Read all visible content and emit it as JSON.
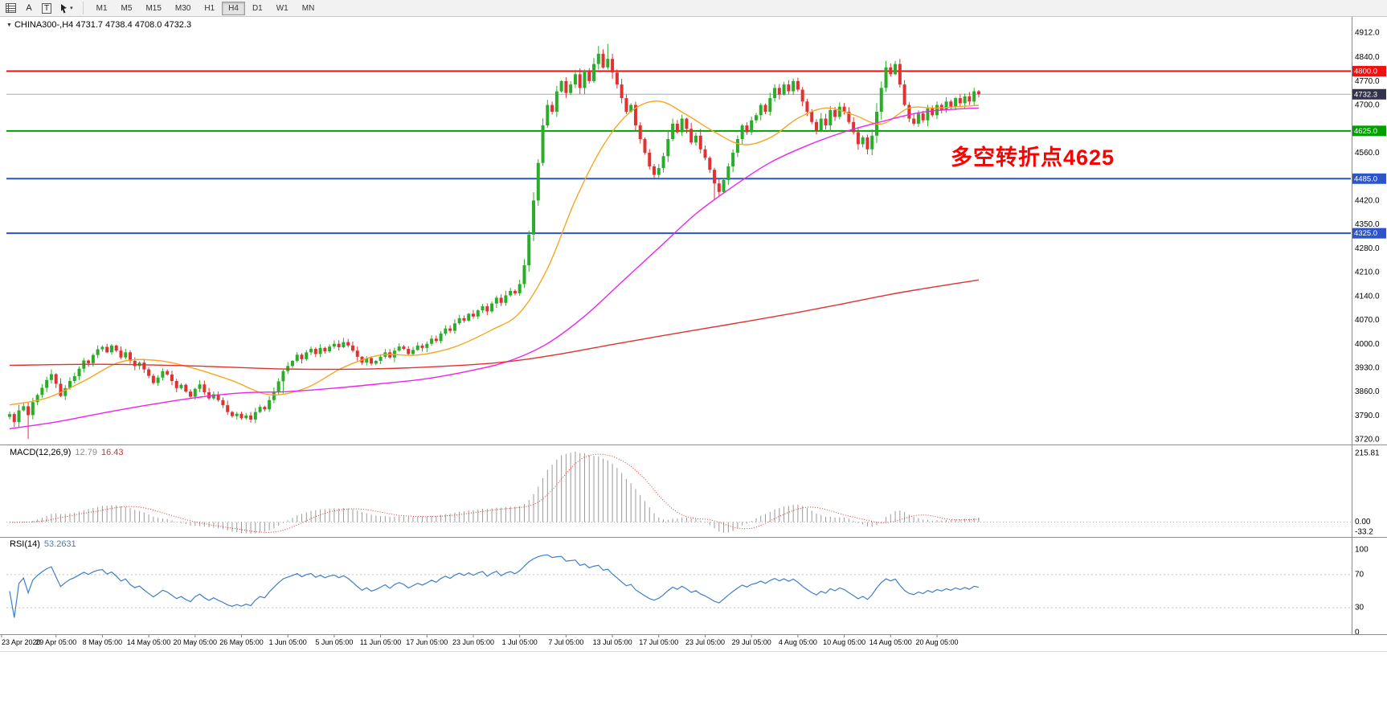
{
  "toolbar": {
    "tools": [
      {
        "name": "chart-list-icon"
      },
      {
        "name": "arrow-tool-button",
        "label": "A"
      },
      {
        "name": "text-tool-button",
        "label": "T"
      },
      {
        "name": "shapes-tool-button"
      }
    ],
    "timeframes": [
      "M1",
      "M5",
      "M15",
      "M30",
      "H1",
      "H4",
      "D1",
      "W1",
      "MN"
    ],
    "active_timeframe": "H4"
  },
  "chart": {
    "title": "CHINA300-,H4 4731.7 4738.4 4708.0 4732.3",
    "symbol": "CHINA300-",
    "period": "H4",
    "ohlc": {
      "open": "4731.7",
      "high": "4738.4",
      "low": "4708.0",
      "close": "4732.3"
    },
    "annotation": {
      "text": "多空转折点4625",
      "color": "#FF0000"
    },
    "levels": [
      {
        "price": 4800.0,
        "label": "4800.0",
        "color": "#EE1111",
        "width": 2,
        "kind": "resistance"
      },
      {
        "price": 4732.3,
        "label": "4732.3",
        "color": "#33334D",
        "line_color": "#a8a8a8",
        "width": 1,
        "kind": "current-price"
      },
      {
        "price": 4625.0,
        "label": "4625.0",
        "color": "#00A000",
        "width": 2,
        "kind": "support"
      },
      {
        "price": 4485.0,
        "label": "4485.0",
        "color": "#2D55C8",
        "width": 2,
        "kind": "support"
      },
      {
        "price": 4325.0,
        "label": "4325.0",
        "color": "#2D55C8",
        "width": 2,
        "kind": "support"
      }
    ]
  },
  "indicators": {
    "macd": {
      "title": "MACD(12,26,9)",
      "value_main": "12.79",
      "value_signal": "16.43",
      "params": {
        "fast": 12,
        "slow": 26,
        "signal": 9
      },
      "axis_labels": [
        "215.81",
        "0.00",
        "-33.2"
      ]
    },
    "rsi": {
      "title": "RSI(14)",
      "value": "53.2631",
      "period": 14,
      "levels": [
        70,
        30
      ],
      "axis_labels": [
        "100",
        "70",
        "30",
        "0"
      ]
    }
  },
  "colors": {
    "candle_up": "#2BAD2B",
    "candle_down": "#E03232",
    "ma_fast": "#F5A623",
    "ma_mid": "#EE22EE",
    "ma_slow": "#E03232",
    "macd_hist": "#9A9A9A",
    "macd_signal": "#E03232",
    "rsi_line": "#3E7EC8",
    "axis_text": "#000000",
    "grid_border": "#8c8c8c"
  },
  "chart_data": {
    "type": "candlestick",
    "symbol": "CHINA300-",
    "timeframe": "H4",
    "bars_per_label": 10,
    "x_labels": [
      "23 Apr 2020",
      "29 Apr 05:00",
      "8 May 05:00",
      "14 May 05:00",
      "20 May 05:00",
      "26 May 05:00",
      "1 Jun 05:00",
      "5 Jun 05:00",
      "11 Jun 05:00",
      "17 Jun 05:00",
      "23 Jun 05:00",
      "1 Jul 05:00",
      "7 Jul 05:00",
      "13 Jul 05:00",
      "17 Jul 05:00",
      "23 Jul 05:00",
      "29 Jul 05:00",
      "4 Aug 05:00",
      "10 Aug 05:00",
      "14 Aug 05:00",
      "20 Aug 05:00"
    ],
    "y_axis": {
      "min": 3720,
      "max": 4912,
      "ticks": [
        4912,
        4840,
        4770,
        4700,
        4560,
        4420,
        4350,
        4280,
        4210,
        4140,
        4070,
        4000,
        3930,
        3860,
        3790,
        3720
      ]
    },
    "closes": [
      3795,
      3772,
      3806,
      3818,
      3792,
      3830,
      3851,
      3872,
      3895,
      3912,
      3884,
      3848,
      3871,
      3892,
      3906,
      3928,
      3952,
      3944,
      3968,
      3985,
      3992,
      3976,
      3996,
      3981,
      3961,
      3976,
      3951,
      3936,
      3946,
      3926,
      3907,
      3886,
      3902,
      3921,
      3911,
      3892,
      3871,
      3881,
      3861,
      3846,
      3869,
      3882,
      3859,
      3841,
      3853,
      3836,
      3821,
      3801,
      3789,
      3796,
      3783,
      3791,
      3779,
      3801,
      3816,
      3809,
      3836,
      3861,
      3891,
      3921,
      3936,
      3951,
      3969,
      3956,
      3976,
      3986,
      3971,
      3989,
      3979,
      3993,
      4001,
      3991,
      4006,
      3996,
      3981,
      3963,
      3946,
      3959,
      3943,
      3951,
      3963,
      3976,
      3961,
      3981,
      3993,
      3986,
      3971,
      3983,
      3996,
      3989,
      4001,
      4016,
      4009,
      4031,
      4046,
      4039,
      4061,
      4076,
      4069,
      4089,
      4081,
      4099,
      4111,
      4096,
      4119,
      4136,
      4121,
      4143,
      4156,
      4149,
      4176,
      4231,
      4321,
      4421,
      4531,
      4641,
      4701,
      4681,
      4741,
      4771,
      4736,
      4761,
      4791,
      4751,
      4801,
      4771,
      4821,
      4851,
      4811,
      4836,
      4796,
      4761,
      4721,
      4681,
      4701,
      4641,
      4601,
      4561,
      4521,
      4496,
      4516,
      4551,
      4601,
      4646,
      4621,
      4661,
      4631,
      4591,
      4611,
      4571,
      4546,
      4511,
      4471,
      4446,
      4481,
      4521,
      4561,
      4601,
      4641,
      4621,
      4656,
      4671,
      4701,
      4681,
      4721,
      4751,
      4731,
      4761,
      4741,
      4771,
      4746,
      4711,
      4681,
      4651,
      4626,
      4661,
      4641,
      4686,
      4666,
      4696,
      4681,
      4651,
      4621,
      4586,
      4606,
      4571,
      4611,
      4681,
      4751,
      4811,
      4791,
      4821,
      4761,
      4701,
      4661,
      4646,
      4676,
      4656,
      4691,
      4671,
      4701,
      4686,
      4711,
      4696,
      4721,
      4706,
      4726,
      4711,
      4741,
      4732.3
    ],
    "wick_overrides": {
      "4": {
        "low": 3722
      },
      "59": {
        "low": 3856
      },
      "127": {
        "high": 4874
      },
      "129": {
        "high": 4880
      },
      "152": {
        "low": 4424
      }
    },
    "moving_averages": [
      {
        "name": "ma-fast",
        "color": "#F5A623",
        "points": [
          [
            0,
            3822
          ],
          [
            8,
            3842
          ],
          [
            16,
            3892
          ],
          [
            24,
            3948
          ],
          [
            32,
            3952
          ],
          [
            40,
            3928
          ],
          [
            48,
            3893
          ],
          [
            56,
            3852
          ],
          [
            64,
            3872
          ],
          [
            72,
            3932
          ],
          [
            80,
            3968
          ],
          [
            88,
            3968
          ],
          [
            96,
            3992
          ],
          [
            104,
            4042
          ],
          [
            110,
            4092
          ],
          [
            116,
            4222
          ],
          [
            122,
            4422
          ],
          [
            128,
            4582
          ],
          [
            134,
            4682
          ],
          [
            140,
            4712
          ],
          [
            146,
            4672
          ],
          [
            152,
            4622
          ],
          [
            158,
            4585
          ],
          [
            164,
            4605
          ],
          [
            170,
            4662
          ],
          [
            176,
            4692
          ],
          [
            182,
            4672
          ],
          [
            188,
            4645
          ],
          [
            194,
            4692
          ],
          [
            200,
            4692
          ],
          [
            209,
            4700
          ]
        ]
      },
      {
        "name": "ma-mid",
        "color": "#EE22EE",
        "points": [
          [
            0,
            3752
          ],
          [
            10,
            3772
          ],
          [
            20,
            3798
          ],
          [
            30,
            3822
          ],
          [
            40,
            3843
          ],
          [
            50,
            3857
          ],
          [
            60,
            3861
          ],
          [
            70,
            3871
          ],
          [
            80,
            3884
          ],
          [
            90,
            3899
          ],
          [
            100,
            3924
          ],
          [
            108,
            3952
          ],
          [
            116,
            4002
          ],
          [
            124,
            4082
          ],
          [
            132,
            4182
          ],
          [
            140,
            4282
          ],
          [
            148,
            4382
          ],
          [
            156,
            4462
          ],
          [
            164,
            4532
          ],
          [
            172,
            4582
          ],
          [
            180,
            4622
          ],
          [
            188,
            4652
          ],
          [
            196,
            4678
          ],
          [
            203,
            4688
          ],
          [
            209,
            4692
          ]
        ]
      },
      {
        "name": "ma-slow",
        "color": "#E03232",
        "points": [
          [
            0,
            3938
          ],
          [
            20,
            3941
          ],
          [
            40,
            3936
          ],
          [
            60,
            3927
          ],
          [
            80,
            3928
          ],
          [
            100,
            3940
          ],
          [
            110,
            3953
          ],
          [
            120,
            3974
          ],
          [
            130,
            3999
          ],
          [
            140,
            4023
          ],
          [
            150,
            4046
          ],
          [
            160,
            4069
          ],
          [
            170,
            4093
          ],
          [
            180,
            4119
          ],
          [
            190,
            4146
          ],
          [
            200,
            4169
          ],
          [
            209,
            4188
          ]
        ]
      }
    ]
  }
}
